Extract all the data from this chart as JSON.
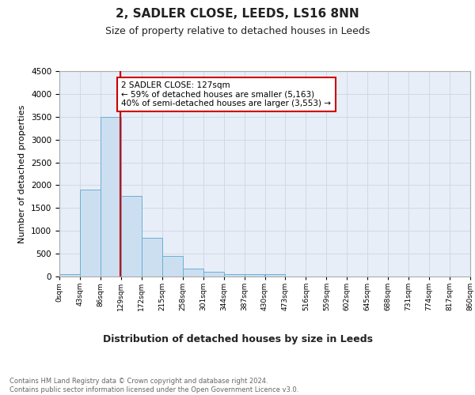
{
  "title": "2, SADLER CLOSE, LEEDS, LS16 8NN",
  "subtitle": "Size of property relative to detached houses in Leeds",
  "xlabel": "Distribution of detached houses by size in Leeds",
  "ylabel": "Number of detached properties",
  "bar_edges": [
    0,
    43,
    86,
    129,
    172,
    215,
    258,
    301,
    344,
    387,
    430,
    473,
    516,
    559,
    602,
    645,
    688,
    731,
    774,
    817,
    860
  ],
  "bar_heights": [
    50,
    1900,
    3500,
    1760,
    840,
    450,
    165,
    100,
    60,
    50,
    50,
    0,
    0,
    0,
    0,
    0,
    0,
    0,
    0,
    0
  ],
  "bar_color": "#ccdff0",
  "bar_edge_color": "#6aafd4",
  "vline_x": 127,
  "vline_color": "#cc0000",
  "annotation_text": "2 SADLER CLOSE: 127sqm\n← 59% of detached houses are smaller (5,163)\n40% of semi-detached houses are larger (3,553) →",
  "annotation_box_color": "#ffffff",
  "annotation_box_edge_color": "#cc0000",
  "ylim": [
    0,
    4500
  ],
  "yticks": [
    0,
    500,
    1000,
    1500,
    2000,
    2500,
    3000,
    3500,
    4000,
    4500
  ],
  "grid_color": "#d0d8e8",
  "background_color": "#e8eef8",
  "footer_text": "Contains HM Land Registry data © Crown copyright and database right 2024.\nContains public sector information licensed under the Open Government Licence v3.0.",
  "title_fontsize": 11,
  "subtitle_fontsize": 9,
  "xlabel_fontsize": 9,
  "ylabel_fontsize": 8,
  "annotation_fontsize": 7.5,
  "tick_fontsize": 6.5,
  "ytick_fontsize": 7.5,
  "tick_labels": [
    "0sqm",
    "43sqm",
    "86sqm",
    "129sqm",
    "172sqm",
    "215sqm",
    "258sqm",
    "301sqm",
    "344sqm",
    "387sqm",
    "430sqm",
    "473sqm",
    "516sqm",
    "559sqm",
    "602sqm",
    "645sqm",
    "688sqm",
    "731sqm",
    "774sqm",
    "817sqm",
    "860sqm"
  ]
}
